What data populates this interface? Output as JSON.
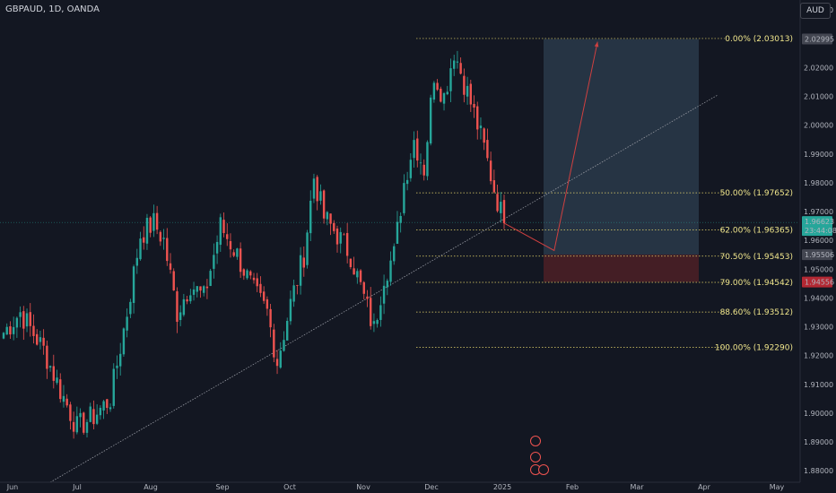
{
  "header": {
    "symbol": "GBPAUD, 1D, OANDA",
    "currency": "AUD"
  },
  "colors": {
    "up": "#26a69a",
    "down": "#ef5350",
    "fib": "#e5d56a",
    "trend": "#9598a1",
    "target_zone": "#2a3a4a",
    "stop_zone": "#4a1f26",
    "arrow": "#d04040"
  },
  "chart_data": {
    "type": "candlestick",
    "title": "",
    "xlabel": "",
    "ylabel": "",
    "ylim": [
      1.876,
      2.0435
    ],
    "x_ticks": [
      "Jun",
      "Jul",
      "Aug",
      "Sep",
      "Oct",
      "Nov",
      "Dec",
      "2025",
      "Feb",
      "Mar",
      "Apr",
      "May"
    ],
    "y_ticks": [
      {
        "v": 2.04,
        "t": "2.04000"
      },
      {
        "v": 2.02,
        "t": "2.02000"
      },
      {
        "v": 2.01,
        "t": "2.01000"
      },
      {
        "v": 2.0,
        "t": "2.00000"
      },
      {
        "v": 1.99,
        "t": "1.99000"
      },
      {
        "v": 1.98,
        "t": "1.98000"
      },
      {
        "v": 1.97,
        "t": "1.97000"
      },
      {
        "v": 1.96,
        "t": "1.96000"
      },
      {
        "v": 1.95,
        "t": "1.95000"
      },
      {
        "v": 1.94,
        "t": "1.94000"
      },
      {
        "v": 1.93,
        "t": "1.93000"
      },
      {
        "v": 1.92,
        "t": "1.92000"
      },
      {
        "v": 1.91,
        "t": "1.91000"
      },
      {
        "v": 1.9,
        "t": "1.90000"
      },
      {
        "v": 1.89,
        "t": "1.89000"
      },
      {
        "v": 1.88,
        "t": "1.88000"
      }
    ],
    "anchors": [
      {
        "d": 0,
        "p": 1.928
      },
      {
        "d": 5,
        "p": 1.935
      },
      {
        "d": 12,
        "p": 1.922
      },
      {
        "d": 17,
        "p": 1.908
      },
      {
        "d": 22,
        "p": 1.895
      },
      {
        "d": 27,
        "p": 1.899
      },
      {
        "d": 32,
        "p": 1.905
      },
      {
        "d": 37,
        "p": 1.935
      },
      {
        "d": 41,
        "p": 1.962
      },
      {
        "d": 45,
        "p": 1.966
      },
      {
        "d": 48,
        "p": 1.96
      },
      {
        "d": 52,
        "p": 1.935
      },
      {
        "d": 56,
        "p": 1.945
      },
      {
        "d": 60,
        "p": 1.94
      },
      {
        "d": 65,
        "p": 1.965
      },
      {
        "d": 70,
        "p": 1.955
      },
      {
        "d": 75,
        "p": 1.942
      },
      {
        "d": 79,
        "p": 1.935
      },
      {
        "d": 82,
        "p": 1.918
      },
      {
        "d": 86,
        "p": 1.938
      },
      {
        "d": 90,
        "p": 1.955
      },
      {
        "d": 93,
        "p": 1.982
      },
      {
        "d": 96,
        "p": 1.968
      },
      {
        "d": 100,
        "p": 1.962
      },
      {
        "d": 104,
        "p": 1.955
      },
      {
        "d": 108,
        "p": 1.94
      },
      {
        "d": 111,
        "p": 1.929
      },
      {
        "d": 114,
        "p": 1.948
      },
      {
        "d": 117,
        "p": 1.955
      },
      {
        "d": 120,
        "p": 1.98
      },
      {
        "d": 123,
        "p": 1.995
      },
      {
        "d": 126,
        "p": 1.985
      },
      {
        "d": 129,
        "p": 2.018
      },
      {
        "d": 132,
        "p": 2.01
      },
      {
        "d": 135,
        "p": 2.026
      },
      {
        "d": 138,
        "p": 2.015
      },
      {
        "d": 141,
        "p": 2.004
      },
      {
        "d": 144,
        "p": 1.992
      },
      {
        "d": 147,
        "p": 1.978
      },
      {
        "d": 150,
        "p": 1.966
      }
    ],
    "last_price": 1.96623,
    "countdown": "23:44:08",
    "fib_levels": [
      {
        "label": "0.00% (2.03013)",
        "v": 2.03013
      },
      {
        "label": "50.00% (1.97652)",
        "v": 1.97652
      },
      {
        "label": "62.00% (1.96365)",
        "v": 1.96365
      },
      {
        "label": "70.50% (1.95453)",
        "v": 1.95453
      },
      {
        "label": "79.00% (1.94542)",
        "v": 1.94542
      },
      {
        "label": "88.60% (1.93512)",
        "v": 1.93512
      },
      {
        "label": "100.00% (1.92290)",
        "v": 1.9229
      }
    ],
    "price_tags": [
      {
        "label": "2.02995",
        "v": 2.02995,
        "color": "#434651"
      },
      {
        "label": "1.95506",
        "v": 1.95506,
        "color": "#434651"
      },
      {
        "label": "1.94556",
        "v": 1.94556,
        "color": "#b22833"
      }
    ],
    "target_zone": {
      "top": 2.02995,
      "bottom": 1.95506
    },
    "stop_zone": {
      "top": 1.95506,
      "bottom": 1.94556
    },
    "trendline": {
      "from": {
        "d": 14,
        "p": 1.876
      },
      "to": {
        "d": 214,
        "p": 2.0105
      }
    },
    "projection": [
      {
        "d": 150,
        "p": 1.966
      },
      {
        "d": 165,
        "p": 1.9565
      },
      {
        "d": 178,
        "p": 2.029
      }
    ]
  },
  "markers": [
    "lightning-icon",
    "flag-icon",
    "calendar-icons"
  ]
}
